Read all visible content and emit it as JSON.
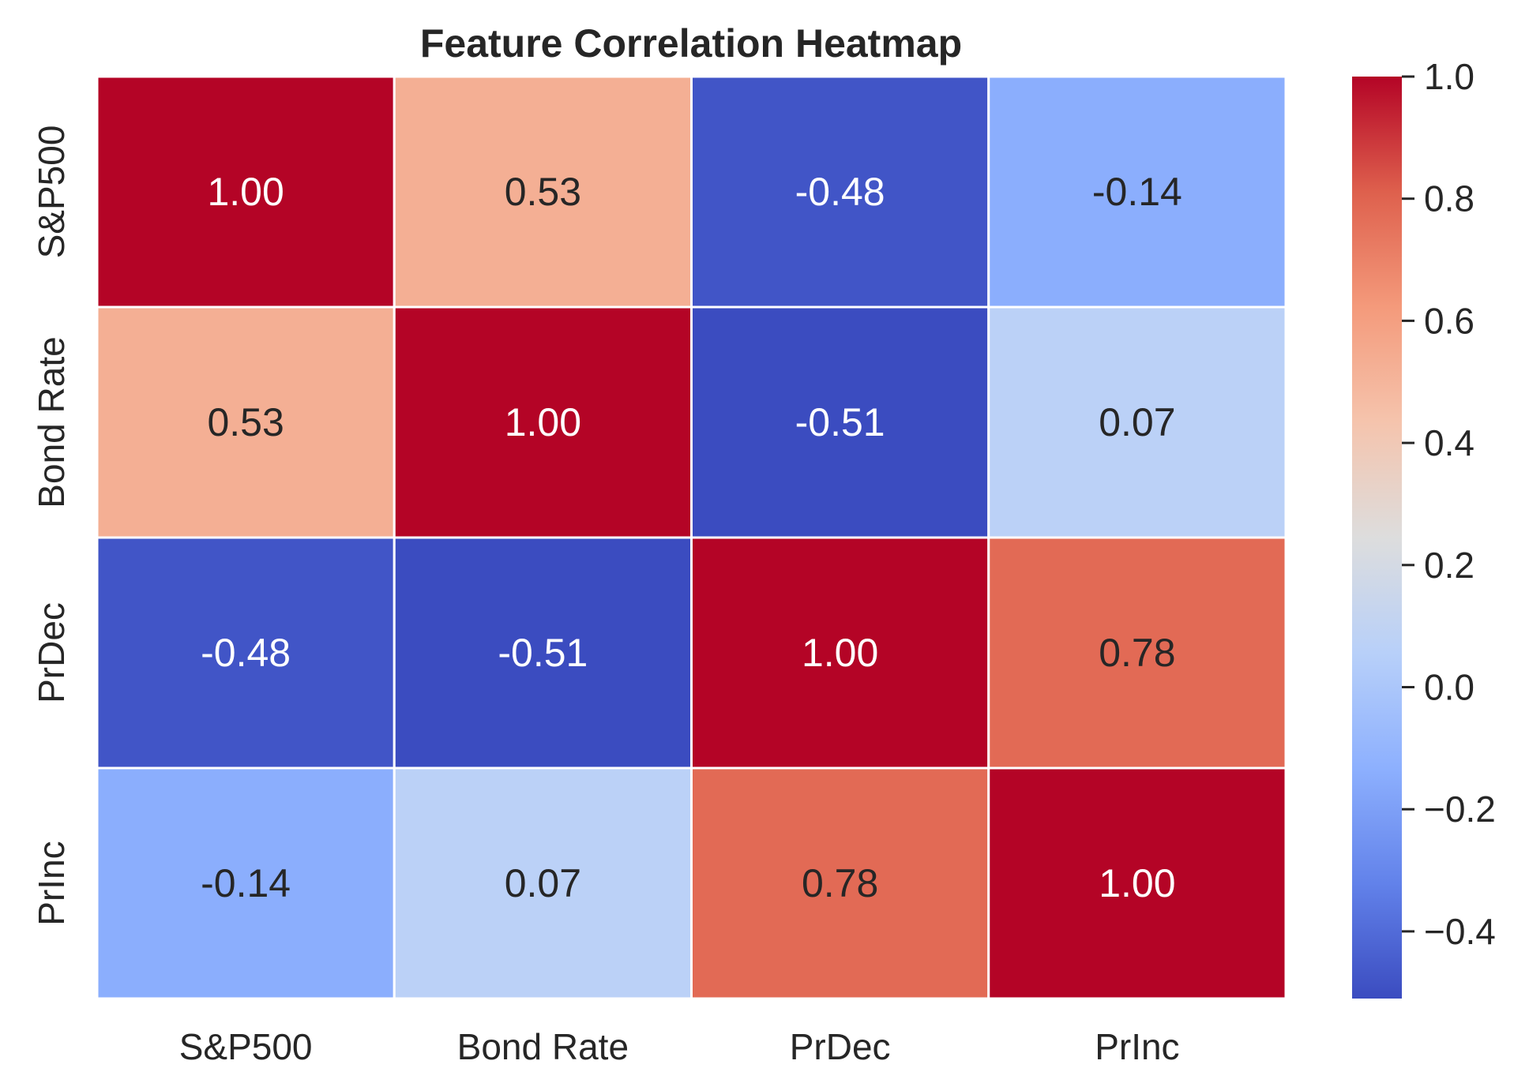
{
  "chart_data": {
    "type": "heatmap",
    "title": "Feature Correlation Heatmap",
    "x_categories": [
      "S&P500",
      "Bond Rate",
      "PrDec",
      "PrInc"
    ],
    "y_categories": [
      "S&P500",
      "Bond Rate",
      "PrDec",
      "PrInc"
    ],
    "values": [
      [
        1.0,
        0.53,
        -0.48,
        -0.14
      ],
      [
        0.53,
        1.0,
        -0.51,
        0.07
      ],
      [
        -0.48,
        -0.51,
        1.0,
        0.78
      ],
      [
        -0.14,
        0.07,
        0.78,
        1.0
      ]
    ],
    "value_labels": [
      [
        "1.00",
        "0.53",
        "-0.48",
        "-0.14"
      ],
      [
        "0.53",
        "1.00",
        "-0.51",
        "0.07"
      ],
      [
        "-0.48",
        "-0.51",
        "1.00",
        "0.78"
      ],
      [
        "-0.14",
        "0.07",
        "0.78",
        "1.00"
      ]
    ],
    "colormap": "coolwarm",
    "colorbar": {
      "range": [
        -0.51,
        1.0
      ],
      "ticks": [
        -0.4,
        -0.2,
        0.0,
        0.2,
        0.4,
        0.6,
        0.8,
        1.0
      ],
      "tick_labels": [
        "−0.4",
        "−0.2",
        "0.0",
        "0.2",
        "0.4",
        "0.6",
        "0.8",
        "1.0"
      ]
    }
  }
}
